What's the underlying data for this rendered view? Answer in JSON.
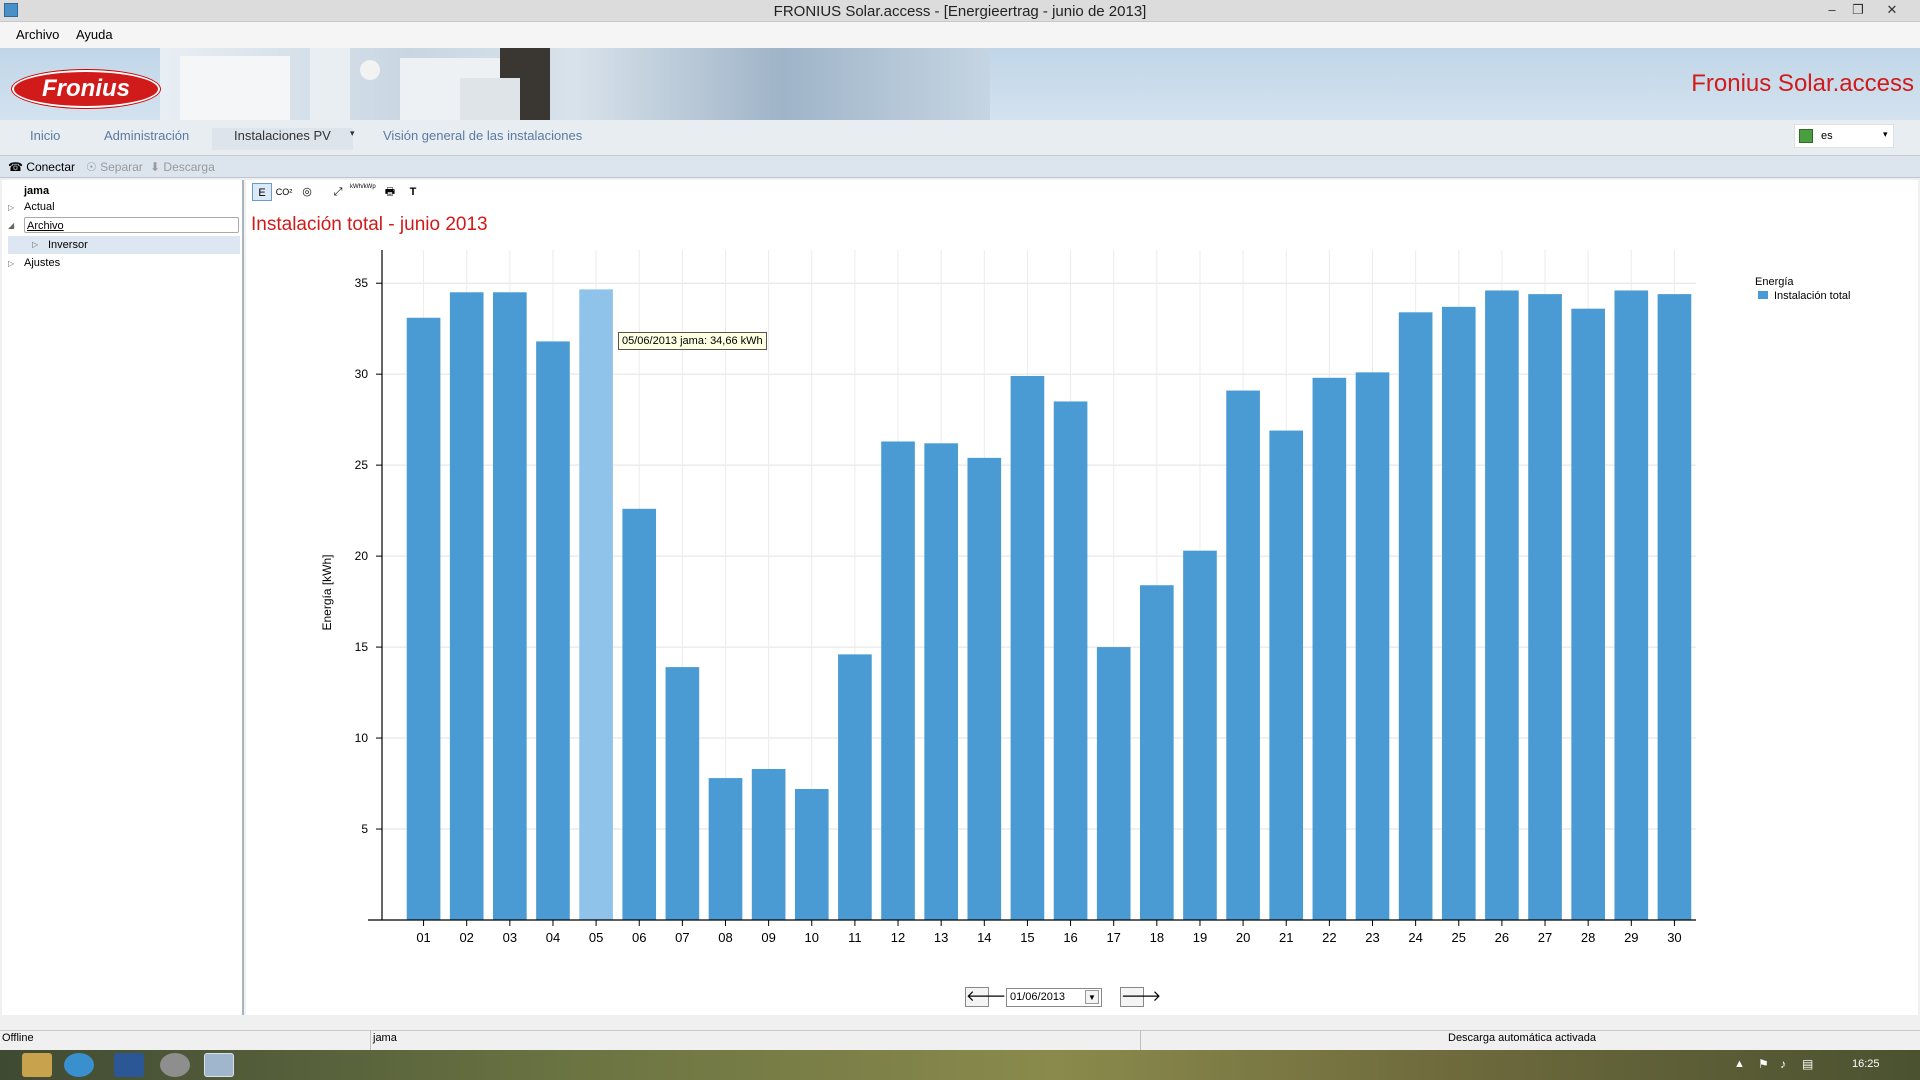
{
  "window": {
    "title": "FRONIUS Solar.access - [Energieertrag - junio de 2013]",
    "minimize": "–",
    "restore": "❐",
    "close": "✕"
  },
  "menu": {
    "items": [
      "Archivo",
      "Ayuda"
    ]
  },
  "banner": {
    "logo": "Fronius",
    "brand": "Fronius Solar.access"
  },
  "nav": {
    "tabs": [
      "Inicio",
      "Administración",
      "Instalaciones PV",
      "Visión general de las instalaciones"
    ],
    "active": "Instalaciones PV",
    "language": "es"
  },
  "toolbar": {
    "connect": "Conectar",
    "separate": "Separar",
    "download": "Descarga"
  },
  "tree": {
    "root": "jama",
    "items": [
      "Actual",
      "Archivo",
      "Inversor",
      "Ajustes"
    ]
  },
  "chart_tools": [
    "E",
    "CO²",
    "◎",
    "⤢",
    "kWh/kWp",
    "🖶",
    "T"
  ],
  "chart_data": {
    "type": "bar",
    "title": "Instalación total - junio 2013",
    "ylabel": "Energía [kWh]",
    "xlabel": "",
    "categories": [
      "01",
      "02",
      "03",
      "04",
      "05",
      "06",
      "07",
      "08",
      "09",
      "10",
      "11",
      "12",
      "13",
      "14",
      "15",
      "16",
      "17",
      "18",
      "19",
      "20",
      "21",
      "22",
      "23",
      "24",
      "25",
      "26",
      "27",
      "28",
      "29",
      "30"
    ],
    "series": [
      {
        "name": "Instalación total",
        "values": [
          33.1,
          34.5,
          34.5,
          31.8,
          34.66,
          22.6,
          13.9,
          7.8,
          8.3,
          7.2,
          14.6,
          26.3,
          26.2,
          25.4,
          29.9,
          28.5,
          15.0,
          18.4,
          20.3,
          29.1,
          26.9,
          29.8,
          30.1,
          33.4,
          33.7,
          34.6,
          34.4,
          33.6,
          34.6,
          34.4
        ]
      }
    ],
    "ylim": [
      0,
      36
    ],
    "yticks": [
      5,
      10,
      15,
      20,
      25,
      30,
      35
    ],
    "highlight_index": 4,
    "legend_title": "Energía",
    "legend_position": "top-right",
    "grid": true,
    "tooltip": "05/06/2013 jama: 34,66 kWh",
    "colors": {
      "bar": "#4a9bd4",
      "highlight": "#8fc3ea"
    }
  },
  "date_nav": {
    "date": "01/06/2013",
    "prev": "🡐",
    "next": "🡒"
  },
  "status": {
    "left": "Offline",
    "middle": "jama",
    "right": "Descarga automática activada"
  },
  "taskbar": {
    "clock": "16:25"
  },
  "colors": {
    "accent_red": "#d11a1a",
    "nav_text": "#5a7aa0"
  }
}
